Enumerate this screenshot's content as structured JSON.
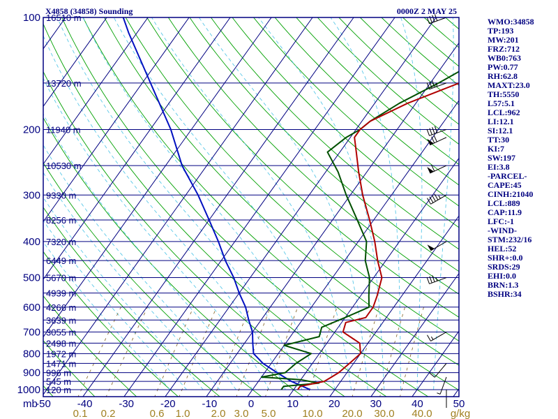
{
  "chart_data": {
    "type": "skew-t sounding",
    "title_left": "X4858 (34858) Sounding",
    "title_right": "0000Z  2 MAY 25",
    "pressure_levels": [
      100,
      200,
      300,
      400,
      500,
      600,
      700,
      800,
      900,
      1000
    ],
    "x_ticks": [
      "-50",
      "-40",
      "-30",
      "-20",
      "-10",
      "0",
      "10",
      "20",
      "30",
      "40",
      "50"
    ],
    "x_unit_label": "mb",
    "mixing_ratio_labels": [
      "0.1",
      "0.2",
      "0.6",
      "1.0",
      "2.0",
      "3.0",
      "5.0",
      "10.0",
      "20.0",
      "30.0",
      "40.0"
    ],
    "mixing_ratio_unit": "g/kg",
    "height_labels": [
      {
        "p": 100,
        "text": "16510 m"
      },
      {
        "p": 150,
        "text": "13720 m"
      },
      {
        "p": 200,
        "text": "11940 m"
      },
      {
        "p": 250,
        "text": "10530 m"
      },
      {
        "p": 300,
        "text": "9330 m"
      },
      {
        "p": 350,
        "text": "8256 m"
      },
      {
        "p": 400,
        "text": "7320 m"
      },
      {
        "p": 450,
        "text": "6449 m"
      },
      {
        "p": 500,
        "text": "5670 m"
      },
      {
        "p": 550,
        "text": "4939 m"
      },
      {
        "p": 600,
        "text": "4266 m"
      },
      {
        "p": 650,
        "text": "3639 m"
      },
      {
        "p": 700,
        "text": "3055 m"
      },
      {
        "p": 750,
        "text": "2498 m"
      },
      {
        "p": 800,
        "text": "1972 m"
      },
      {
        "p": 850,
        "text": "1471 m"
      },
      {
        "p": 900,
        "text": "996 m"
      },
      {
        "p": 950,
        "text": "545 m"
      },
      {
        "p": 1000,
        "text": "120 m"
      }
    ],
    "temperature": [
      [
        1000,
        11
      ],
      [
        980,
        11
      ],
      [
        950,
        16
      ],
      [
        925,
        17
      ],
      [
        900,
        18
      ],
      [
        850,
        19
      ],
      [
        800,
        20
      ],
      [
        750,
        18
      ],
      [
        700,
        12
      ],
      [
        660,
        11
      ],
      [
        640,
        15
      ],
      [
        600,
        15
      ],
      [
        560,
        14
      ],
      [
        500,
        12
      ],
      [
        450,
        8
      ],
      [
        400,
        4
      ],
      [
        350,
        -1
      ],
      [
        300,
        -7
      ],
      [
        260,
        -12
      ],
      [
        230,
        -16
      ],
      [
        210,
        -19
      ],
      [
        200,
        -19
      ],
      [
        190,
        -18
      ],
      [
        170,
        -12
      ],
      [
        150,
        -3
      ],
      [
        130,
        12
      ],
      [
        115,
        23
      ],
      [
        100,
        27
      ]
    ],
    "dewpoint": [
      [
        1000,
        7
      ],
      [
        980,
        7
      ],
      [
        960,
        15
      ],
      [
        940,
        10
      ],
      [
        925,
        0
      ],
      [
        900,
        5
      ],
      [
        850,
        6
      ],
      [
        800,
        8
      ],
      [
        760,
        0
      ],
      [
        720,
        7
      ],
      [
        680,
        6
      ],
      [
        640,
        10
      ],
      [
        600,
        14
      ],
      [
        560,
        12
      ],
      [
        500,
        9
      ],
      [
        450,
        5
      ],
      [
        400,
        2
      ],
      [
        350,
        -4
      ],
      [
        300,
        -11
      ],
      [
        260,
        -17
      ],
      [
        230,
        -23
      ],
      [
        210,
        -21
      ],
      [
        200,
        -19
      ],
      [
        190,
        -18
      ],
      [
        170,
        -14
      ],
      [
        150,
        -8
      ],
      [
        130,
        -2
      ],
      [
        115,
        5
      ],
      [
        100,
        7
      ]
    ],
    "parcel": [
      [
        1000,
        14
      ],
      [
        950,
        8
      ],
      [
        900,
        3
      ],
      [
        850,
        -2
      ],
      [
        800,
        -6
      ],
      [
        750,
        -8
      ],
      [
        700,
        -10
      ],
      [
        650,
        -13
      ],
      [
        600,
        -16
      ],
      [
        550,
        -20
      ],
      [
        500,
        -24
      ],
      [
        450,
        -29
      ],
      [
        400,
        -34
      ],
      [
        350,
        -40
      ],
      [
        300,
        -47
      ],
      [
        250,
        -56
      ],
      [
        200,
        -65
      ],
      [
        150,
        -78
      ],
      [
        110,
        -92
      ],
      [
        100,
        -96
      ]
    ],
    "wind_barbs": [
      {
        "p": 100,
        "dir": 250,
        "spd": 40
      },
      {
        "p": 150,
        "dir": 250,
        "spd": 35
      },
      {
        "p": 200,
        "dir": 250,
        "spd": 40
      },
      {
        "p": 210,
        "dir": 245,
        "spd": 70
      },
      {
        "p": 250,
        "dir": 245,
        "spd": 60
      },
      {
        "p": 300,
        "dir": 240,
        "spd": 45
      },
      {
        "p": 400,
        "dir": 240,
        "spd": 50
      },
      {
        "p": 500,
        "dir": 250,
        "spd": 35
      },
      {
        "p": 700,
        "dir": 240,
        "spd": 15
      },
      {
        "p": 850,
        "dir": 220,
        "spd": 10
      },
      {
        "p": 925,
        "dir": 200,
        "spd": 5
      },
      {
        "p": 1000,
        "dir": 180,
        "spd": 0
      }
    ]
  },
  "stats": [
    "WMO:34858",
    "TP:193",
    "MW:201",
    "FRZ:712",
    "WB0:763",
    "PW:0.77",
    "RH:62.8",
    "MAXT:23.0",
    "TH:5550",
    "L57:5.1",
    "LCL:962",
    "LI:12.1",
    "SI:12.1",
    "TT:30",
    "KI:7",
    "SW:197",
    "EI:3.8",
    "-PARCEL-",
    "CAPE:45",
    "CINH:21040",
    "LCL:889",
    "CAP:11.9",
    "LFC:-1",
    "-WIND-",
    "STM:232/16",
    "HEL:52",
    "SHR+:0.0",
    "SRDS:29",
    "EHI:0.0",
    "BRN:1.3",
    "BSHR:34"
  ],
  "colors": {
    "frame": "#000080",
    "isobar": "#000080",
    "isotherm": "#000080",
    "dry_adiabat": "#00a000",
    "moist_adiabat": "#5ac8e8",
    "mixing_ratio": "#806020",
    "temperature": "#b00000",
    "dewpoint": "#005000",
    "parcel": "#0010c0",
    "barb": "#000000"
  }
}
